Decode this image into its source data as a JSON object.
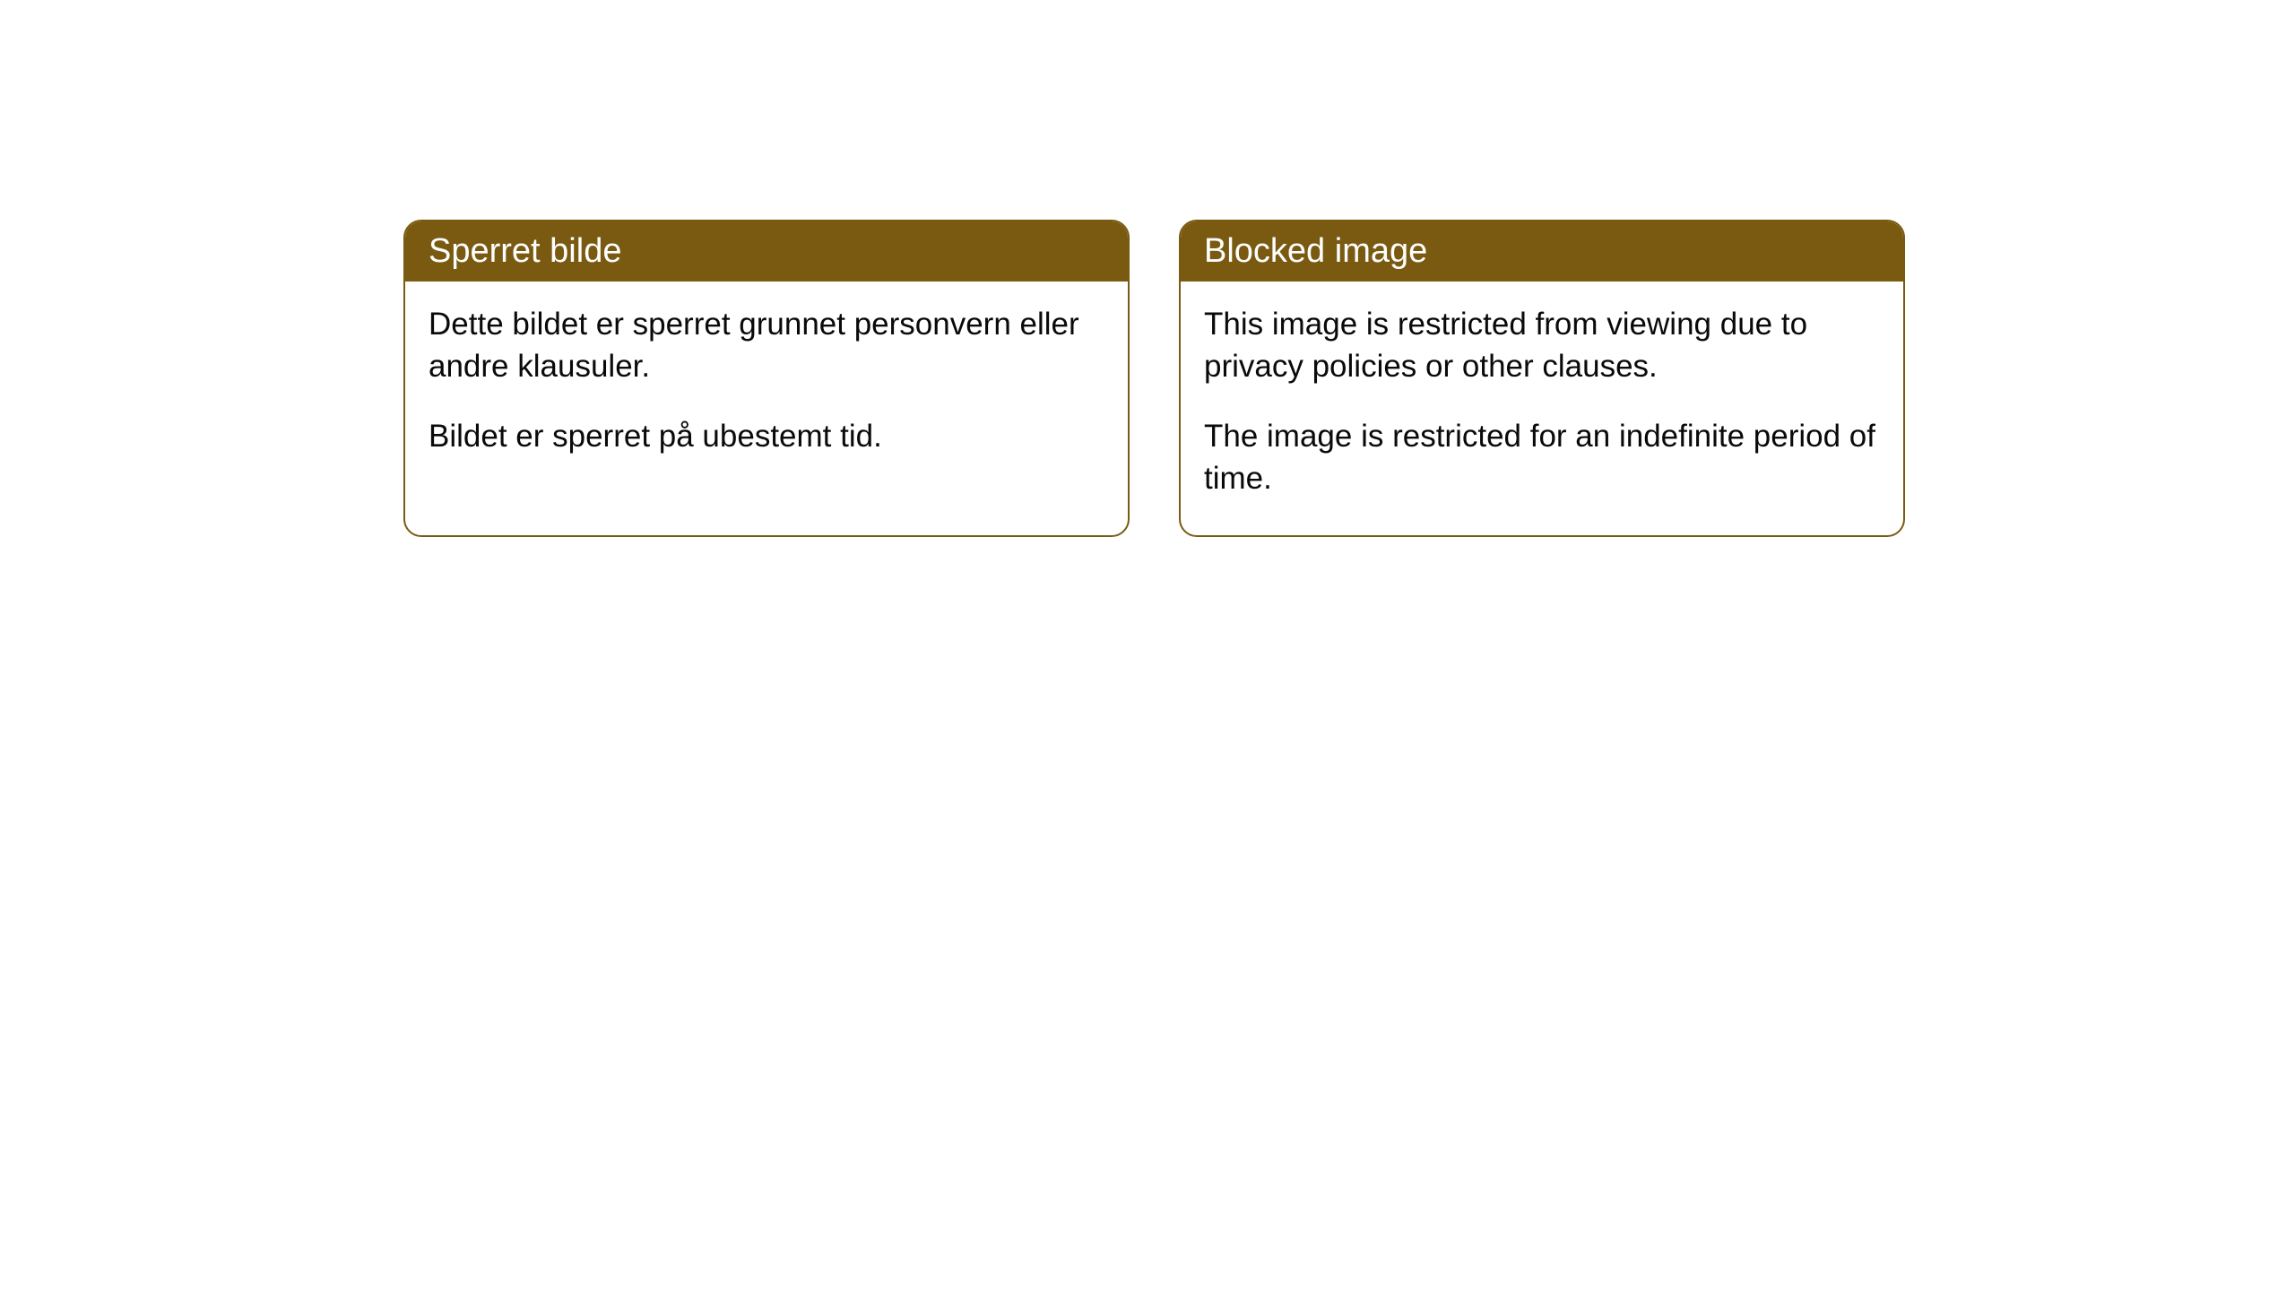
{
  "cards": [
    {
      "title": "Sperret bilde",
      "paragraph1": "Dette bildet er sperret grunnet personvern eller andre klausuler.",
      "paragraph2": "Bildet er sperret på ubestemt tid."
    },
    {
      "title": "Blocked image",
      "paragraph1": "This image is restricted from viewing due to privacy policies or other clauses.",
      "paragraph2": "The image is restricted for an indefinite period of time."
    }
  ],
  "styling": {
    "header_background_color": "#795a10",
    "header_text_color": "#ffffff",
    "border_color": "#795a10",
    "body_text_color": "#0a0a0a",
    "background_color": "#ffffff",
    "border_radius": 20,
    "header_fontsize": 38,
    "body_fontsize": 35
  }
}
